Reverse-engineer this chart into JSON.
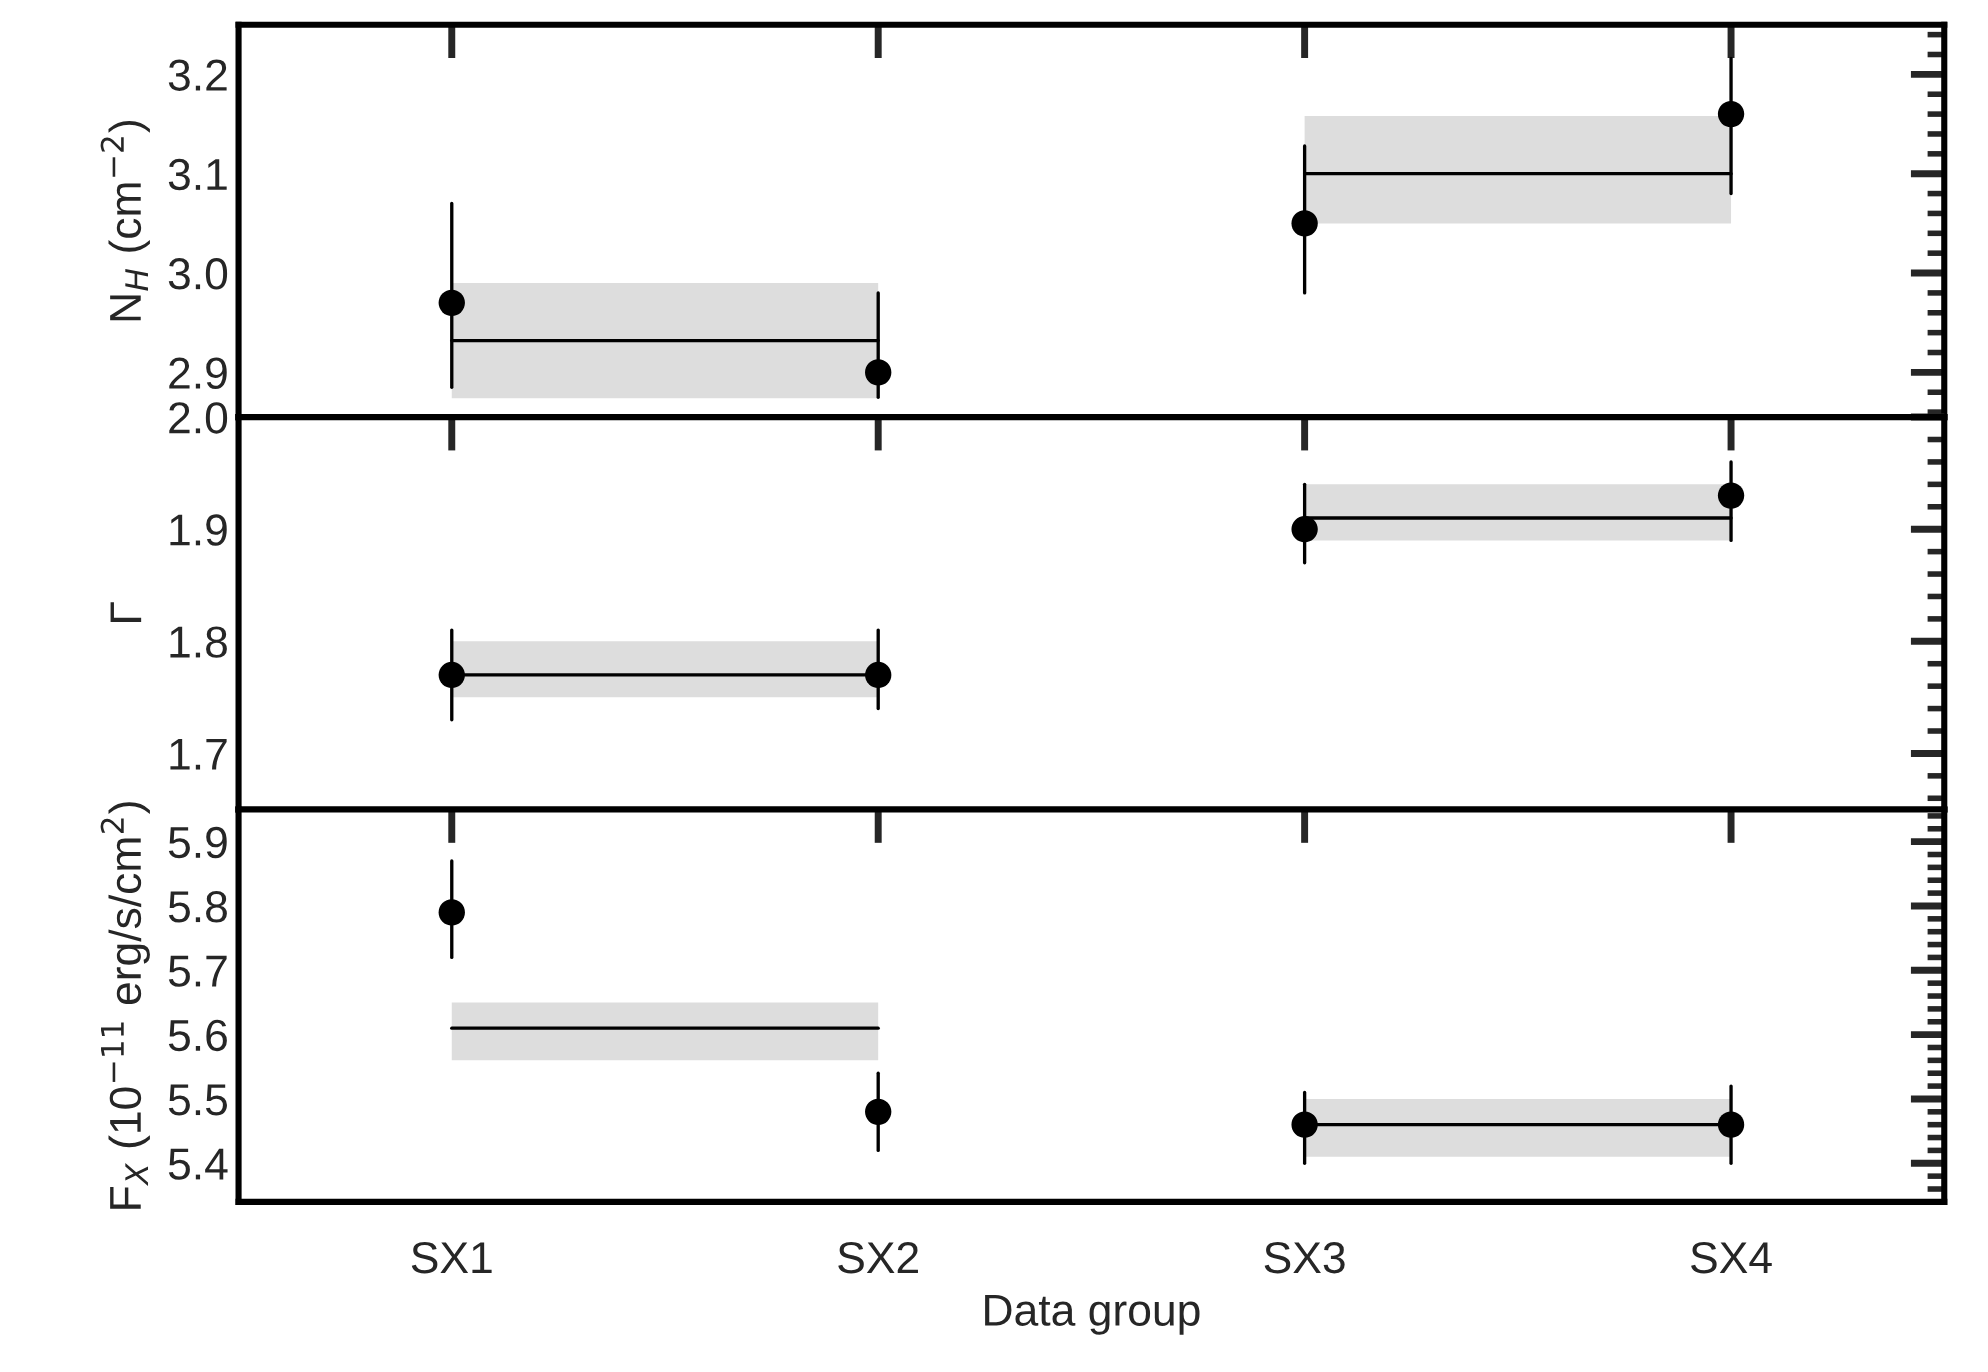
{
  "chart_data": [
    {
      "type": "scatter",
      "ylabel": "N$_{H}$ (cm$^{−2}$)",
      "categories": [
        null,
        null,
        null,
        null
      ],
      "ylim": [
        2.855,
        3.25
      ],
      "yticks": [
        2.9,
        {
          "value": 3.0,
          "label": "3.0"
        },
        3.1,
        3.2
      ],
      "tick_labels": "y",
      "series": [
        {
          "type": "line",
          "color": "#000000",
          "values": [
            2.932,
            2.932,
            null,
            null
          ],
          "lower": [
            2.874,
            2.874,
            null,
            null
          ],
          "upper": [
            2.99,
            2.99,
            null,
            null
          ]
        },
        {
          "type": "line",
          "color": "#000000",
          "values": [
            null,
            null,
            3.1,
            3.1
          ],
          "lower": [
            null,
            null,
            3.05,
            3.05
          ],
          "upper": [
            null,
            null,
            3.158,
            3.158
          ]
        },
        {
          "color": "#000000",
          "marker": "circle",
          "values": [
            2.97,
            2.9,
            3.05,
            3.16
          ],
          "errors": [
            [
              2.885,
              3.07
            ],
            [
              2.875,
              2.98
            ],
            [
              2.98,
              3.128
            ],
            [
              3.08,
              3.216
            ]
          ]
        }
      ]
    },
    {
      "type": "scatter",
      "ylabel": "Γ",
      "categories": [
        null,
        null,
        null,
        null
      ],
      "ylim": [
        1.65,
        2.0
      ],
      "yticks": [
        1.7,
        1.8,
        1.9,
        {
          "value": 2.0,
          "label": "2.0"
        }
      ],
      "tick_labels": "y",
      "series": [
        {
          "type": "line",
          "color": "#000000",
          "values": [
            1.77,
            1.77,
            null,
            null
          ],
          "lower": [
            1.75,
            1.75,
            null,
            null
          ],
          "upper": [
            1.8,
            1.8,
            null,
            null
          ]
        },
        {
          "type": "line",
          "color": "#000000",
          "values": [
            null,
            null,
            1.91,
            1.91
          ],
          "lower": [
            null,
            null,
            1.89,
            1.89
          ],
          "upper": [
            null,
            null,
            1.94,
            1.94
          ]
        },
        {
          "color": "#000000",
          "marker": "circle",
          "values": [
            1.77,
            1.77,
            1.9,
            1.93
          ],
          "errors": [
            [
              1.73,
              1.81
            ],
            [
              1.74,
              1.81
            ],
            [
              1.87,
              1.94
            ],
            [
              1.89,
              1.96
            ]
          ]
        }
      ]
    },
    {
      "type": "scatter",
      "xlabel": "Data group",
      "ylabel": "F$_{X}$ (10$^{−11}$ erg/s/cm$^{2}$)",
      "categories": [
        "SX1",
        "SX2",
        "SX3",
        "SX4"
      ],
      "ylim": [
        5.34,
        5.95
      ],
      "yticks": [
        5.4,
        5.5,
        5.6,
        5.7,
        5.8,
        5.9
      ],
      "series": [
        {
          "type": "line",
          "color": "#000000",
          "values": [
            5.61,
            5.61,
            null,
            null
          ],
          "lower": [
            5.56,
            5.56,
            null,
            null
          ],
          "upper": [
            5.65,
            5.65,
            null,
            null
          ]
        },
        {
          "type": "line",
          "color": "#000000",
          "values": [
            null,
            null,
            5.46,
            5.46
          ],
          "lower": [
            null,
            null,
            5.41,
            5.41
          ],
          "upper": [
            null,
            null,
            5.5,
            5.5
          ]
        },
        {
          "color": "#000000",
          "marker": "circle",
          "values": [
            5.79,
            5.48,
            5.46,
            5.46
          ],
          "errors": [
            [
              5.72,
              5.87
            ],
            [
              5.42,
              5.54
            ],
            [
              5.4,
              5.51
            ],
            [
              5.4,
              5.52
            ]
          ]
        }
      ]
    }
  ]
}
